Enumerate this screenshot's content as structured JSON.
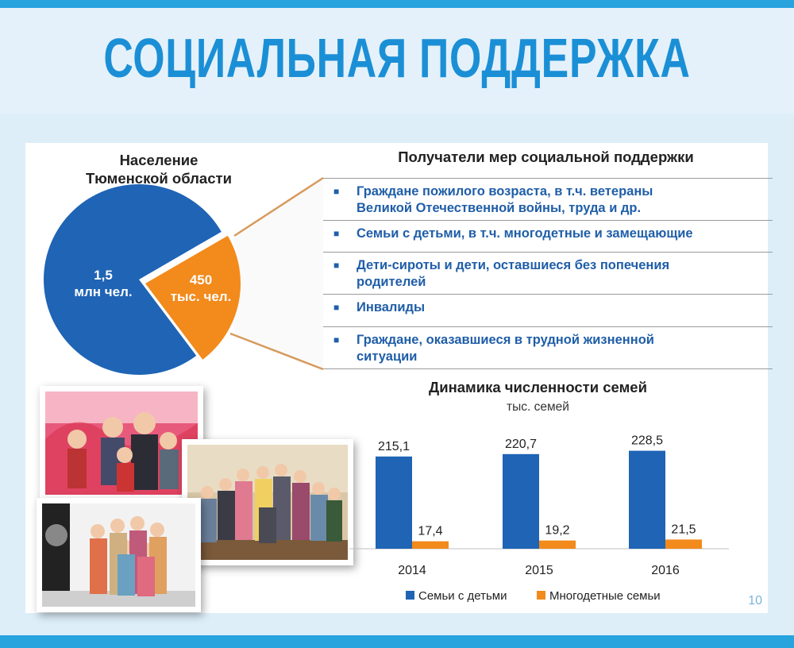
{
  "header": {
    "title": "СОЦИАЛЬНАЯ ПОДДЕРЖКА"
  },
  "population": {
    "title_line1": "Население",
    "title_line2": "Тюменской области",
    "slices": [
      {
        "line1": "1,5",
        "line2": "млн чел.",
        "value": 1500,
        "color": "#1f64b5"
      },
      {
        "line1": "450",
        "line2": "тыс. чел.",
        "value": 450,
        "color": "#f28a1c"
      }
    ]
  },
  "recipients": {
    "title": "Получатели мер социальной поддержки",
    "items": [
      {
        "line1": "Граждане пожилого возраста, в т.ч. ветераны",
        "line2": "Великой Отечественной войны, труда и др."
      },
      {
        "line1": "Семьи с детьми, в т.ч. многодетные и замещающие",
        "line2": ""
      },
      {
        "line1": "Дети-сироты и дети, оставшиеся без попечения",
        "line2": "родителей"
      },
      {
        "line1": "Инвалиды",
        "line2": ""
      },
      {
        "line1": "Граждане, оказавшиеся в трудной жизненной",
        "line2": "ситуации"
      }
    ]
  },
  "chart_data": {
    "type": "bar",
    "title": "Динамика численности семей",
    "subtitle": "тыс. семей",
    "categories": [
      "2014",
      "2015",
      "2016"
    ],
    "series": [
      {
        "name": "Семьи с детьми",
        "values": [
          215.1,
          220.7,
          228.5
        ],
        "labels": [
          "215,1",
          "220,7",
          "228,5"
        ],
        "color": "#1f64b5"
      },
      {
        "name": "Многодетные семьи",
        "values": [
          17.4,
          19.2,
          21.5
        ],
        "labels": [
          "17,4",
          "19,2",
          "21,5"
        ],
        "color": "#f28a1c"
      }
    ],
    "legend": "bottom",
    "grid": false
  },
  "page_number": "10"
}
